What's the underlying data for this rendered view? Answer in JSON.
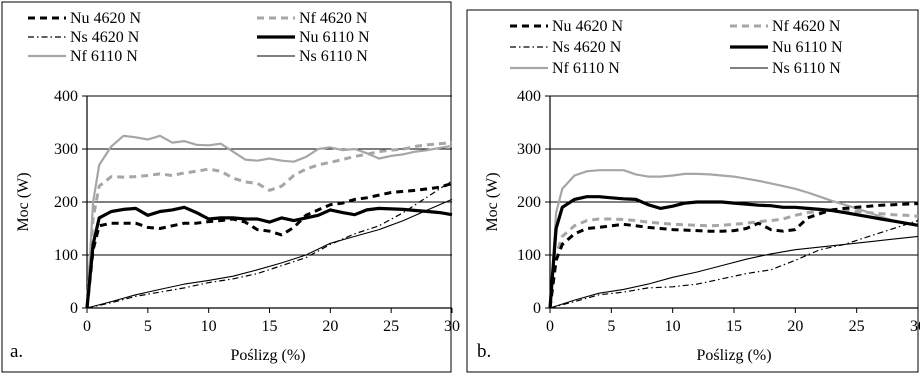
{
  "chart_data": [
    {
      "type": "line",
      "panel_label": "a.",
      "xlabel": "Poślizg (%)",
      "ylabel": "Moc (W)",
      "xlim": [
        0,
        30
      ],
      "ylim": [
        0,
        400
      ],
      "xticks": [
        "0",
        "5",
        "10",
        "15",
        "20",
        "25",
        "30"
      ],
      "yticks": [
        "0",
        "100",
        "200",
        "300",
        "400"
      ],
      "grid": "horizontal",
      "legend_position": "top",
      "series": [
        {
          "name": "Nu 4620 N",
          "x": [
            0,
            0.5,
            1,
            2,
            3,
            4,
            5,
            6,
            7,
            8,
            9,
            10,
            11,
            12,
            13,
            14,
            15,
            16,
            17,
            18,
            19,
            20,
            21,
            22,
            23,
            24,
            25,
            26,
            27,
            28,
            29,
            30
          ],
          "values": [
            0,
            110,
            155,
            160,
            160,
            160,
            152,
            150,
            155,
            160,
            160,
            163,
            165,
            168,
            162,
            148,
            145,
            138,
            152,
            175,
            185,
            195,
            198,
            205,
            208,
            213,
            218,
            220,
            222,
            225,
            228,
            235
          ]
        },
        {
          "name": "Nf 4620 N",
          "x": [
            0,
            0.5,
            1,
            2,
            3,
            4,
            5,
            6,
            7,
            8,
            9,
            10,
            11,
            12,
            13,
            14,
            15,
            16,
            17,
            18,
            19,
            20,
            21,
            22,
            23,
            24,
            25,
            26,
            27,
            28,
            29,
            30
          ],
          "values": [
            0,
            170,
            230,
            248,
            247,
            248,
            250,
            253,
            250,
            255,
            258,
            262,
            258,
            245,
            238,
            235,
            222,
            230,
            250,
            262,
            270,
            275,
            280,
            286,
            290,
            295,
            298,
            300,
            305,
            308,
            310,
            312
          ]
        },
        {
          "name": "Ns 4620 N",
          "x": [
            0,
            2,
            4,
            6,
            8,
            10,
            12,
            14,
            16,
            18,
            20,
            22,
            24,
            26,
            28,
            30
          ],
          "values": [
            0,
            10,
            22,
            30,
            38,
            48,
            55,
            65,
            80,
            95,
            120,
            140,
            155,
            180,
            210,
            240
          ]
        },
        {
          "name": "Nu 6110 N",
          "x": [
            0,
            0.5,
            1,
            2,
            3,
            4,
            5,
            6,
            7,
            8,
            9,
            10,
            11,
            12,
            13,
            14,
            15,
            16,
            17,
            18,
            19,
            20,
            21,
            22,
            23,
            24,
            25,
            26,
            27,
            28,
            29,
            30
          ],
          "values": [
            0,
            120,
            170,
            182,
            186,
            188,
            175,
            182,
            185,
            190,
            180,
            168,
            170,
            170,
            168,
            168,
            162,
            170,
            165,
            170,
            175,
            185,
            180,
            176,
            185,
            188,
            187,
            186,
            184,
            182,
            180,
            176
          ]
        },
        {
          "name": "Nf 6110 N",
          "x": [
            0,
            0.5,
            1,
            2,
            3,
            4,
            5,
            6,
            7,
            8,
            9,
            10,
            11,
            12,
            13,
            14,
            15,
            16,
            17,
            18,
            19,
            20,
            21,
            22,
            23,
            24,
            25,
            26,
            27,
            28,
            29,
            30
          ],
          "values": [
            0,
            200,
            270,
            305,
            325,
            322,
            318,
            325,
            312,
            315,
            308,
            307,
            310,
            295,
            280,
            278,
            282,
            278,
            276,
            285,
            300,
            303,
            298,
            300,
            292,
            282,
            287,
            290,
            295,
            298,
            302,
            306
          ]
        },
        {
          "name": "Ns 6110 N",
          "x": [
            0,
            2,
            4,
            6,
            8,
            10,
            12,
            14,
            16,
            18,
            20,
            22,
            24,
            26,
            28,
            30
          ],
          "values": [
            0,
            12,
            25,
            35,
            45,
            52,
            60,
            72,
            85,
            100,
            122,
            135,
            148,
            165,
            185,
            205
          ]
        }
      ]
    },
    {
      "type": "line",
      "panel_label": "b.",
      "xlabel": "Poślizg (%)",
      "ylabel": "Moc (W)",
      "xlim": [
        0,
        30
      ],
      "ylim": [
        0,
        400
      ],
      "xticks": [
        "0",
        "5",
        "10",
        "15",
        "20",
        "25",
        "30"
      ],
      "yticks": [
        "0",
        "100",
        "200",
        "300",
        "400"
      ],
      "grid": "horizontal",
      "legend_position": "top",
      "series": [
        {
          "name": "Nu 4620 N",
          "x": [
            0,
            0.5,
            1,
            2,
            3,
            4,
            5,
            6,
            7,
            8,
            9,
            10,
            11,
            12,
            13,
            14,
            15,
            16,
            17,
            18,
            19,
            20,
            21,
            22,
            23,
            24,
            25,
            26,
            27,
            28,
            29,
            30
          ],
          "values": [
            0,
            90,
            120,
            140,
            150,
            152,
            155,
            158,
            155,
            152,
            150,
            148,
            147,
            146,
            145,
            145,
            146,
            150,
            160,
            148,
            145,
            148,
            170,
            178,
            185,
            188,
            190,
            192,
            194,
            195,
            196,
            197
          ]
        },
        {
          "name": "Nf 4620 N",
          "x": [
            0,
            0.5,
            1,
            2,
            3,
            4,
            5,
            6,
            7,
            8,
            9,
            10,
            11,
            12,
            13,
            14,
            15,
            16,
            17,
            18,
            19,
            20,
            21,
            22,
            23,
            24,
            25,
            26,
            27,
            28,
            29,
            30
          ],
          "values": [
            0,
            100,
            135,
            155,
            165,
            168,
            168,
            167,
            165,
            162,
            160,
            158,
            157,
            156,
            155,
            156,
            158,
            160,
            163,
            165,
            168,
            175,
            180,
            182,
            185,
            184,
            182,
            180,
            178,
            176,
            175,
            173
          ]
        },
        {
          "name": "Ns 4620 N",
          "x": [
            0,
            2,
            4,
            6,
            8,
            10,
            12,
            14,
            16,
            18,
            20,
            22,
            24,
            26,
            28,
            30
          ],
          "values": [
            0,
            12,
            25,
            30,
            38,
            40,
            45,
            55,
            65,
            72,
            90,
            110,
            120,
            135,
            150,
            165
          ]
        },
        {
          "name": "Nu 6110 N",
          "x": [
            0,
            0.5,
            1,
            2,
            3,
            4,
            5,
            6,
            7,
            8,
            9,
            10,
            11,
            12,
            13,
            14,
            15,
            16,
            17,
            18,
            19,
            20,
            21,
            22,
            23,
            24,
            25,
            26,
            27,
            28,
            29,
            30
          ],
          "values": [
            0,
            150,
            190,
            205,
            210,
            210,
            208,
            206,
            205,
            195,
            188,
            192,
            198,
            200,
            200,
            200,
            198,
            196,
            194,
            193,
            190,
            190,
            188,
            186,
            184,
            180,
            176,
            172,
            168,
            164,
            160,
            156
          ]
        },
        {
          "name": "Nf 6110 N",
          "x": [
            0,
            0.5,
            1,
            2,
            3,
            4,
            5,
            6,
            7,
            8,
            9,
            10,
            11,
            12,
            13,
            14,
            15,
            16,
            17,
            18,
            19,
            20,
            21,
            22,
            23,
            24,
            25,
            26,
            27,
            28,
            29,
            30
          ],
          "values": [
            0,
            180,
            225,
            250,
            258,
            260,
            260,
            260,
            252,
            248,
            248,
            250,
            253,
            253,
            252,
            250,
            248,
            244,
            240,
            235,
            230,
            225,
            218,
            210,
            202,
            195,
            188,
            180,
            172,
            165,
            160,
            155
          ]
        },
        {
          "name": "Ns 6110 N",
          "x": [
            0,
            2,
            4,
            6,
            8,
            10,
            12,
            14,
            16,
            18,
            20,
            22,
            24,
            26,
            28,
            30
          ],
          "values": [
            0,
            15,
            28,
            35,
            45,
            58,
            68,
            80,
            92,
            102,
            110,
            115,
            120,
            125,
            130,
            135
          ]
        }
      ]
    }
  ],
  "legend_styles": [
    {
      "color": "#000000",
      "width": 3,
      "dash": "7,5"
    },
    {
      "color": "#a6a6a6",
      "width": 3,
      "dash": "7,5"
    },
    {
      "color": "#000000",
      "width": 1.2,
      "dash": "6,3,1.5,3"
    },
    {
      "color": "#000000",
      "width": 3.2,
      "dash": ""
    },
    {
      "color": "#a6a6a6",
      "width": 2.2,
      "dash": ""
    },
    {
      "color": "#000000",
      "width": 1.1,
      "dash": ""
    }
  ]
}
